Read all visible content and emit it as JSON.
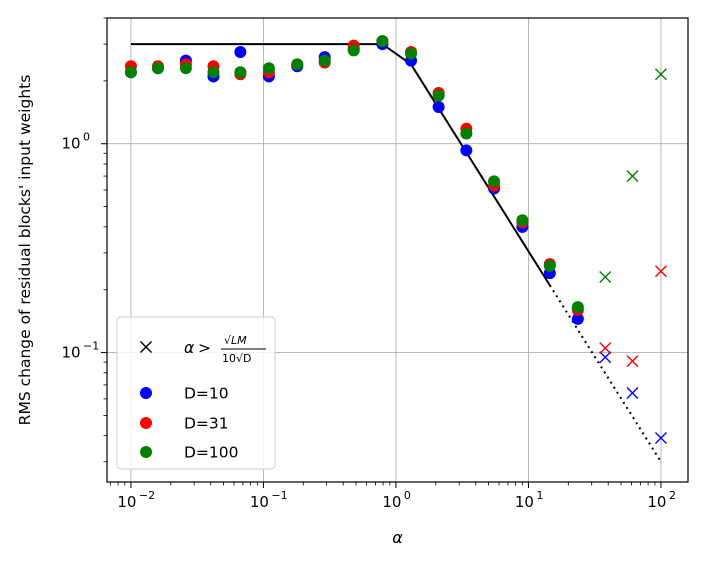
{
  "chart_data": {
    "type": "scatter",
    "xlabel": "α",
    "ylabel": "RMS change of residual blocks' input weights",
    "xscale": "log",
    "yscale": "log",
    "xlim": [
      0.0066,
      160
    ],
    "ylim": [
      0.024,
      4.0
    ],
    "grid": true,
    "legend_position": "lower-left",
    "x_ticks": [
      {
        "value": 0.01,
        "base": "10",
        "exp": "−2"
      },
      {
        "value": 0.1,
        "base": "10",
        "exp": "−1"
      },
      {
        "value": 1,
        "base": "10",
        "exp": "0"
      },
      {
        "value": 10,
        "base": "10",
        "exp": "1"
      },
      {
        "value": 100,
        "base": "10",
        "exp": "2"
      }
    ],
    "y_ticks": [
      {
        "value": 0.1,
        "base": "10",
        "exp": "−1"
      },
      {
        "value": 1,
        "base": "10",
        "exp": "0"
      }
    ],
    "legend": [
      {
        "label": "α > √LM / 10√D",
        "marker": "x",
        "color": "#000000"
      },
      {
        "label": "D=10",
        "marker": "circle",
        "color": "#0000ff"
      },
      {
        "label": "D=31",
        "marker": "circle",
        "color": "#ff0000"
      },
      {
        "label": "D=100",
        "marker": "circle",
        "color": "#008000"
      }
    ],
    "theory_line": {
      "color": "#000000",
      "solid": {
        "x": [
          0.01,
          0.5,
          0.79,
          1.3,
          14.5
        ],
        "y": [
          3.0,
          3.0,
          3.0,
          2.4,
          0.21
        ]
      },
      "dotted": {
        "x": [
          14.5,
          100
        ],
        "y": [
          0.21,
          0.03
        ]
      }
    },
    "series": [
      {
        "name": "D=10",
        "color": "#0000ff",
        "x": [
          0.01,
          0.016,
          0.026,
          0.042,
          0.067,
          0.11,
          0.18,
          0.29,
          0.48,
          0.79,
          1.3,
          2.1,
          3.4,
          5.5,
          9.0,
          14.5,
          23.6
        ],
        "y": [
          2.2,
          2.3,
          2.5,
          2.1,
          2.75,
          2.1,
          2.35,
          2.6,
          2.85,
          3.0,
          2.5,
          1.5,
          0.93,
          0.61,
          0.4,
          0.24,
          0.145
        ],
        "x_cross": [
          38,
          61,
          100
        ],
        "y_cross": [
          0.095,
          0.064,
          0.039
        ]
      },
      {
        "name": "D=31",
        "color": "#ff0000",
        "x": [
          0.01,
          0.016,
          0.026,
          0.042,
          0.067,
          0.11,
          0.18,
          0.29,
          0.48,
          0.79,
          1.3,
          2.1,
          3.4,
          5.5,
          9.0,
          14.5,
          23.6
        ],
        "y": [
          2.35,
          2.35,
          2.4,
          2.35,
          2.15,
          2.2,
          2.4,
          2.45,
          2.95,
          3.1,
          2.75,
          1.75,
          1.18,
          0.63,
          0.42,
          0.265,
          0.16
        ],
        "x_cross": [
          38,
          61,
          100
        ],
        "y_cross": [
          0.105,
          0.091,
          0.245
        ]
      },
      {
        "name": "D=100",
        "color": "#008000",
        "x": [
          0.01,
          0.016,
          0.026,
          0.042,
          0.067,
          0.11,
          0.18,
          0.29,
          0.48,
          0.79,
          1.3,
          2.1,
          3.4,
          5.5,
          9.0,
          14.5,
          23.6
        ],
        "y": [
          2.2,
          2.3,
          2.3,
          2.2,
          2.2,
          2.3,
          2.4,
          2.5,
          2.8,
          3.1,
          2.7,
          1.7,
          1.12,
          0.66,
          0.43,
          0.26,
          0.165
        ],
        "x_cross": [
          38,
          61,
          100
        ],
        "y_cross": [
          0.23,
          0.7,
          2.15
        ]
      }
    ]
  }
}
